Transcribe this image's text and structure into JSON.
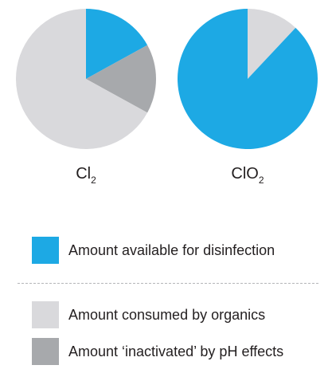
{
  "chart_data": [
    {
      "type": "pie",
      "title": "Cl2",
      "label_main": "Cl",
      "label_sub": "2",
      "slices": [
        {
          "name": "Amount available for disinfection",
          "value": 17,
          "color": "#1da9e4"
        },
        {
          "name": "Amount 'inactivated' by pH effects",
          "value": 16,
          "color": "#a7a9ac"
        },
        {
          "name": "Amount consumed by organics",
          "value": 67,
          "color": "#d9d9dc"
        }
      ]
    },
    {
      "type": "pie",
      "title": "ClO2",
      "label_main": "ClO",
      "label_sub": "2",
      "slices": [
        {
          "name": "Amount consumed by organics",
          "value": 12,
          "color": "#d9d9dc"
        },
        {
          "name": "Amount available for disinfection",
          "value": 88,
          "color": "#1da9e4"
        }
      ]
    }
  ],
  "legend": {
    "available": {
      "label": "Amount available for disinfection",
      "color": "#1da9e4"
    },
    "consumed": {
      "label": "Amount consumed by organics",
      "color": "#d9d9dc"
    },
    "inactivated": {
      "label": "Amount ‘inactivated’ by pH effects",
      "color": "#a7a9ac"
    }
  },
  "colors": {
    "divider": "#b5b6b8",
    "text": "#231f20"
  }
}
